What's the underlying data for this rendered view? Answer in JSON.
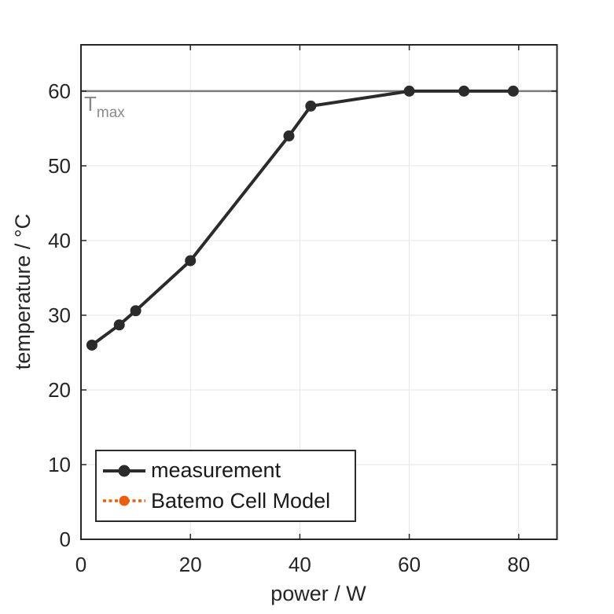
{
  "chart_data": {
    "type": "line",
    "title": "",
    "xlabel": "power / W",
    "ylabel": "temperature / °C",
    "xlim": [
      0,
      87
    ],
    "ylim": [
      0,
      66.2
    ],
    "xticks": [
      0,
      20,
      40,
      60,
      80
    ],
    "yticks": [
      0,
      10,
      20,
      30,
      40,
      50,
      60
    ],
    "grid": true,
    "legend_position": "southwest-inside",
    "series": [
      {
        "name": "measurement",
        "color": "#2b2b2b",
        "line_style": "solid",
        "marker": "circle",
        "x": [
          2,
          7,
          10,
          20,
          38,
          42,
          60,
          70,
          79
        ],
        "y": [
          26,
          28.7,
          30.6,
          37.3,
          54,
          58,
          60,
          60,
          60
        ]
      },
      {
        "name": "Batemo Cell Model",
        "color": "#e8600f",
        "line_style": "dotted",
        "marker": "circle",
        "x": [],
        "y": []
      }
    ],
    "annotations": [
      {
        "type": "hline",
        "y": 60,
        "label_base": "T",
        "label_subscript": "max",
        "color": "#7b7b7b"
      }
    ]
  },
  "colors": {
    "axis": "#262626",
    "tick_text": "#262626",
    "grid": "#e6e6e6",
    "tmax_line": "#7b7b7b",
    "annotation_text": "#8a8a8a",
    "background": "#ffffff"
  }
}
